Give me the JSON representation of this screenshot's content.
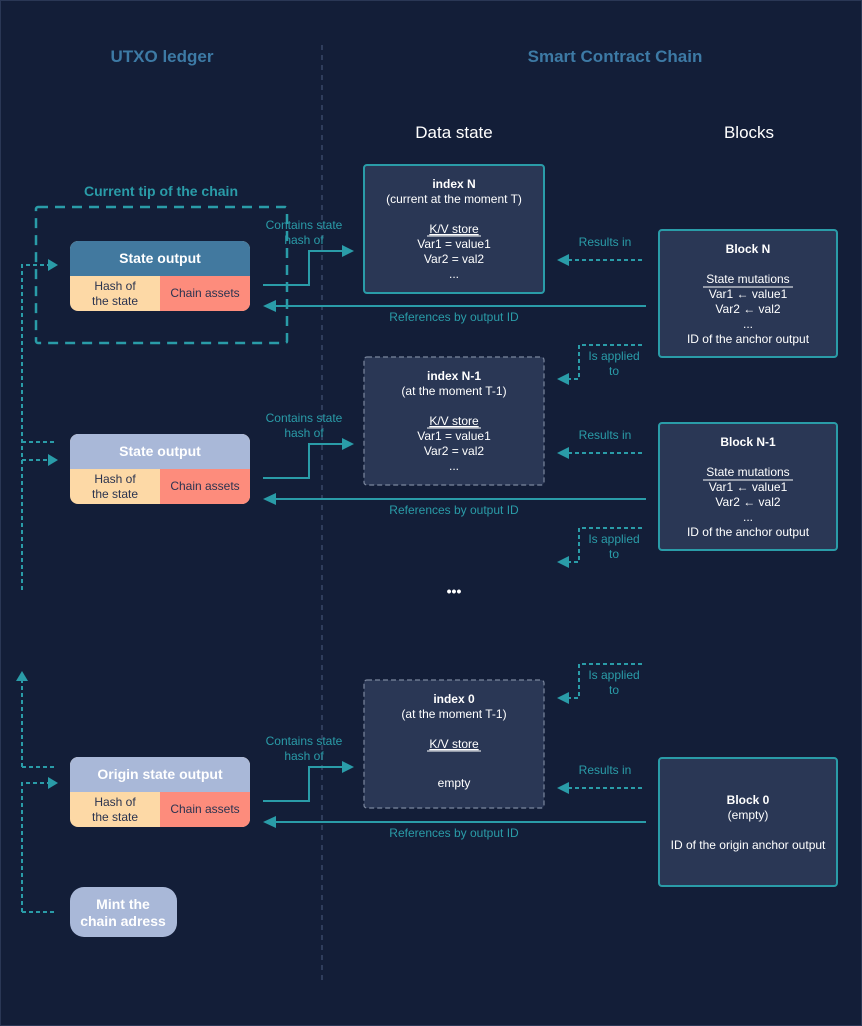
{
  "headers": {
    "utxo": "UTXO ledger",
    "smart": "Smart Contract Chain",
    "data_state": "Data state",
    "blocks": "Blocks"
  },
  "tip_label": "Current tip of the chain",
  "outputs": [
    {
      "title": "State output",
      "hash": [
        "Hash of",
        "the state"
      ],
      "assets": "Chain assets",
      "header_color": "#42799f"
    },
    {
      "title": "State output",
      "hash": [
        "Hash of",
        "the state"
      ],
      "assets": "Chain assets",
      "header_color": "#a9b8d8"
    },
    {
      "title": "Origin state output",
      "hash": [
        "Hash of",
        "the state"
      ],
      "assets": "Chain assets",
      "header_color": "#a9b8d8"
    }
  ],
  "mint": [
    "Mint the",
    "chain adress"
  ],
  "labels": {
    "contains": [
      "Contains state",
      "hash of"
    ],
    "results": "Results in",
    "references": "References by output ID",
    "applied": [
      "Is applied",
      "to"
    ]
  },
  "states": [
    {
      "title": "index N",
      "subtitle": "(current at the moment T)",
      "store": "K/V store",
      "lines": [
        "Var1 = value1",
        "Var2 = val2",
        "..."
      ]
    },
    {
      "title": "index N-1",
      "subtitle": "(at the moment T-1)",
      "store": "K/V store",
      "lines": [
        "Var1 = value1",
        "Var2 = val2",
        "..."
      ]
    },
    {
      "title": "index 0",
      "subtitle": "(at the moment T-1)",
      "store": "K/V store",
      "lines": [
        "empty"
      ]
    }
  ],
  "blocks": [
    {
      "title": "Block N",
      "mut": "State mutations",
      "lines": [
        "Var1 ← value1",
        "Var2 ← val2",
        "...",
        "ID of the anchor output"
      ]
    },
    {
      "title": "Block N-1",
      "mut": "State mutations",
      "lines": [
        "Var1 ← value1",
        "Var2 ← val2",
        "...",
        "ID of the anchor output"
      ]
    },
    {
      "title": "Block 0",
      "subtitle": "(empty)",
      "lines": [
        "ID of the origin anchor output"
      ]
    }
  ],
  "ellipsis": "•••",
  "colors": {
    "background": "#131e38",
    "accent": "#2a9ca8",
    "box": "#2a3755",
    "hash": "#fdd9a6",
    "assets": "#fd8c7c"
  }
}
